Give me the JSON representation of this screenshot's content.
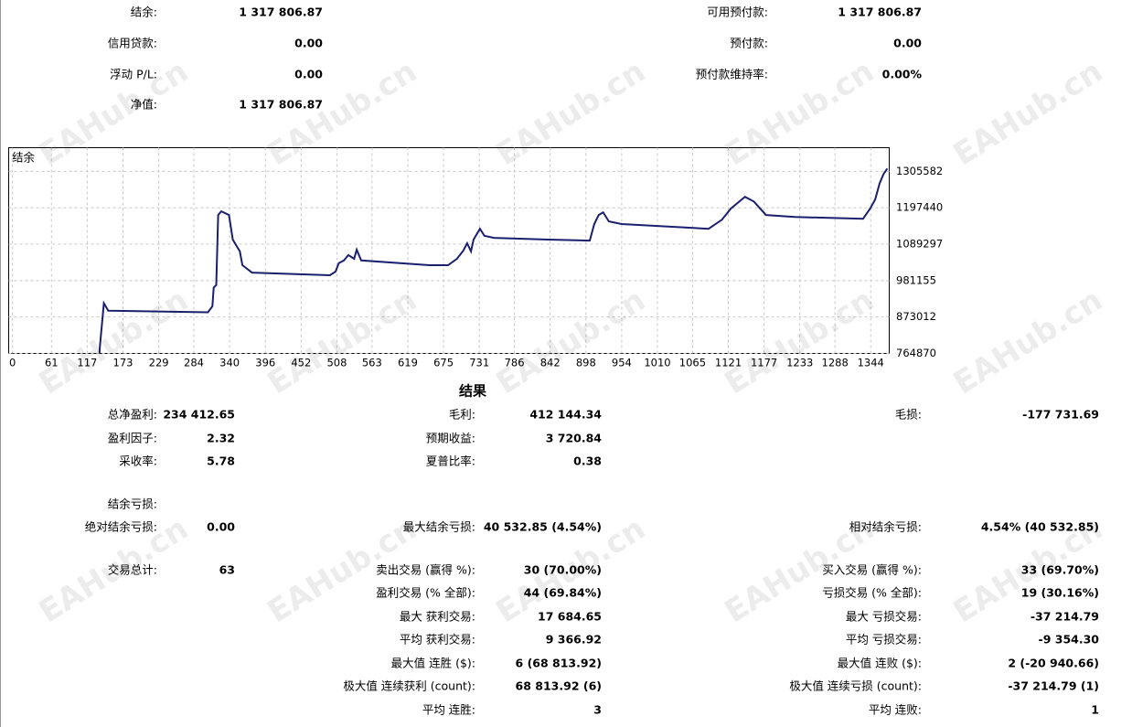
{
  "summary": {
    "rows": [
      {
        "left": [
          "结余:",
          "1 317 806.87"
        ],
        "right": [
          "可用预付款:",
          "1 317 806.87"
        ]
      },
      {
        "left": [
          "信用贷款:",
          "0.00"
        ],
        "right": [
          "预付款:",
          "0.00"
        ]
      },
      {
        "left": [
          "浮动 P/L:",
          "0.00"
        ],
        "right": [
          "预付款维持率:",
          "0.00%"
        ]
      },
      {
        "left": [
          "净值:",
          "1 317 806.87"
        ]
      }
    ]
  },
  "chart_data": {
    "type": "line",
    "series": [
      {
        "name": "结余",
        "color": "#1a1f6e",
        "x": [
          136,
          137,
          143,
          150,
          306,
          313,
          315,
          319,
          322,
          327,
          339,
          345,
          356,
          360,
          375,
          497,
          506,
          511,
          519,
          526,
          535,
          539,
          546,
          653,
          682,
          696,
          706,
          712,
          718,
          722,
          732,
          739,
          754,
          839,
          904,
          911,
          918,
          925,
          934,
          954,
          1090,
          1111,
          1125,
          1147,
          1161,
          1180,
          1225,
          1332,
          1343,
          1351,
          1358,
          1364,
          1370
        ],
        "values": [
          764870,
          790000,
          914000,
          892000,
          887000,
          905000,
          960000,
          968000,
          1176000,
          1187000,
          1176000,
          1103000,
          1068000,
          1027000,
          1005000,
          997000,
          1008000,
          1033000,
          1041000,
          1057000,
          1046000,
          1073000,
          1041000,
          1027000,
          1027000,
          1046000,
          1070000,
          1092000,
          1068000,
          1103000,
          1135000,
          1114000,
          1108000,
          1103000,
          1100000,
          1149000,
          1176000,
          1184000,
          1157000,
          1149000,
          1135000,
          1162000,
          1195000,
          1230000,
          1216000,
          1176000,
          1170000,
          1165000,
          1195000,
          1222000,
          1270000,
          1297000,
          1314000
        ]
      }
    ],
    "xlim": [
      -6,
      1373
    ],
    "ylim": [
      764870,
      1375875
    ],
    "xticks": [
      0,
      61,
      117,
      173,
      229,
      284,
      340,
      396,
      452,
      508,
      563,
      619,
      675,
      731,
      786,
      842,
      898,
      954,
      1010,
      1065,
      1121,
      1177,
      1233,
      1288,
      1344
    ],
    "yticks": [
      764870,
      873012,
      981155,
      1089297,
      1197440,
      1305582
    ],
    "grid": true
  },
  "results": {
    "title": "结果",
    "rows": [
      {
        "left": [
          "总净盈利:",
          "234 412.65"
        ],
        "middle": [
          "毛利:",
          "412 144.34"
        ],
        "right": [
          "毛损:",
          "-177 731.69"
        ]
      },
      {
        "left": [
          "盈利因子:",
          "2.32"
        ],
        "middle": [
          "预期收益:",
          "3 720.84"
        ]
      },
      {
        "left": [
          "采收率:",
          "5.78"
        ],
        "middle": [
          "夏普比率:",
          "0.38"
        ]
      },
      {
        "left": [
          "结余亏损:"
        ]
      },
      {
        "left": [
          "绝对结余亏损:",
          "0.00"
        ],
        "middle": [
          "最大结余亏损:",
          "40 532.85 (4.54%)"
        ],
        "right": [
          "相对结余亏损:",
          "4.54% (40 532.85)"
        ]
      },
      {
        "left": [
          "交易总计:",
          "63"
        ],
        "middle": [
          "卖出交易 (赢得 %):",
          "30 (70.00%)"
        ],
        "right": [
          "买入交易 (赢得 %):",
          "33 (69.70%)"
        ]
      },
      {
        "middle": [
          "盈利交易 (% 全部):",
          "44 (69.84%)"
        ],
        "right": [
          "亏损交易 (% 全部):",
          "19 (30.16%)"
        ]
      },
      {
        "middle": [
          "最大 获利交易:",
          "17 684.65"
        ],
        "right": [
          "最大 亏损交易:",
          "-37 214.79"
        ]
      },
      {
        "middle": [
          "平均 获利交易:",
          "9 366.92"
        ],
        "right": [
          "平均 亏损交易:",
          "-9 354.30"
        ]
      },
      {
        "middle": [
          "最大值 连胜 ($):",
          "6 (68 813.92)"
        ],
        "right": [
          "最大值 连败 ($):",
          "2 (-20 940.66)"
        ]
      },
      {
        "middle": [
          "极大值 连续获利 (count):",
          "68 813.92 (6)"
        ],
        "right": [
          "极大值 连续亏损 (count):",
          "-37 214.79 (1)"
        ]
      },
      {
        "middle": [
          "平均 连胜:",
          "3"
        ],
        "right": [
          "平均 连败:",
          "1"
        ]
      }
    ]
  },
  "watermark": "EAHub.cn"
}
